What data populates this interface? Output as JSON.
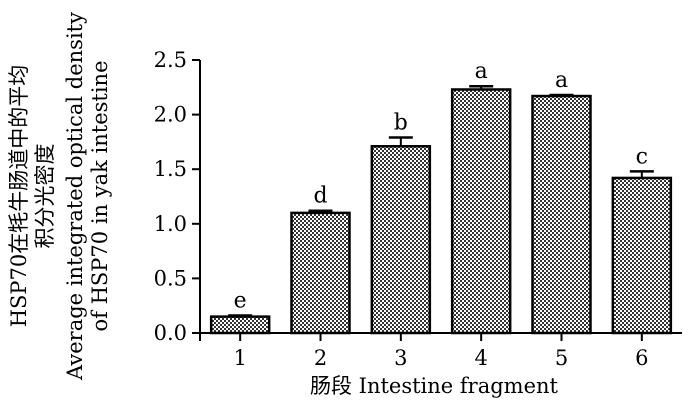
{
  "chart_data": {
    "type": "bar",
    "categories": [
      "1",
      "2",
      "3",
      "4",
      "5",
      "6"
    ],
    "values": [
      0.15,
      1.1,
      1.71,
      2.23,
      2.17,
      1.42
    ],
    "errors": [
      0.01,
      0.02,
      0.08,
      0.03,
      0.01,
      0.06
    ],
    "letters": [
      "e",
      "d",
      "b",
      "a",
      "a",
      "c"
    ],
    "xlabel": "肠段 Intestine fragment",
    "ylabel_lines": [
      "HSP70在牦牛肠道中的平均",
      "积分光密度",
      "Average integrated optical density",
      "of HSP70 in yak intestine"
    ],
    "ylim": [
      0,
      2.5
    ],
    "yticks": [
      "0.0",
      "0.5",
      "1.0",
      "1.5",
      "2.0",
      "2.5"
    ],
    "fill": "checkerboard pattern",
    "colors": {
      "bar_dark": "#333333",
      "bar_light": "#ffffff",
      "axis": "#000000"
    }
  }
}
